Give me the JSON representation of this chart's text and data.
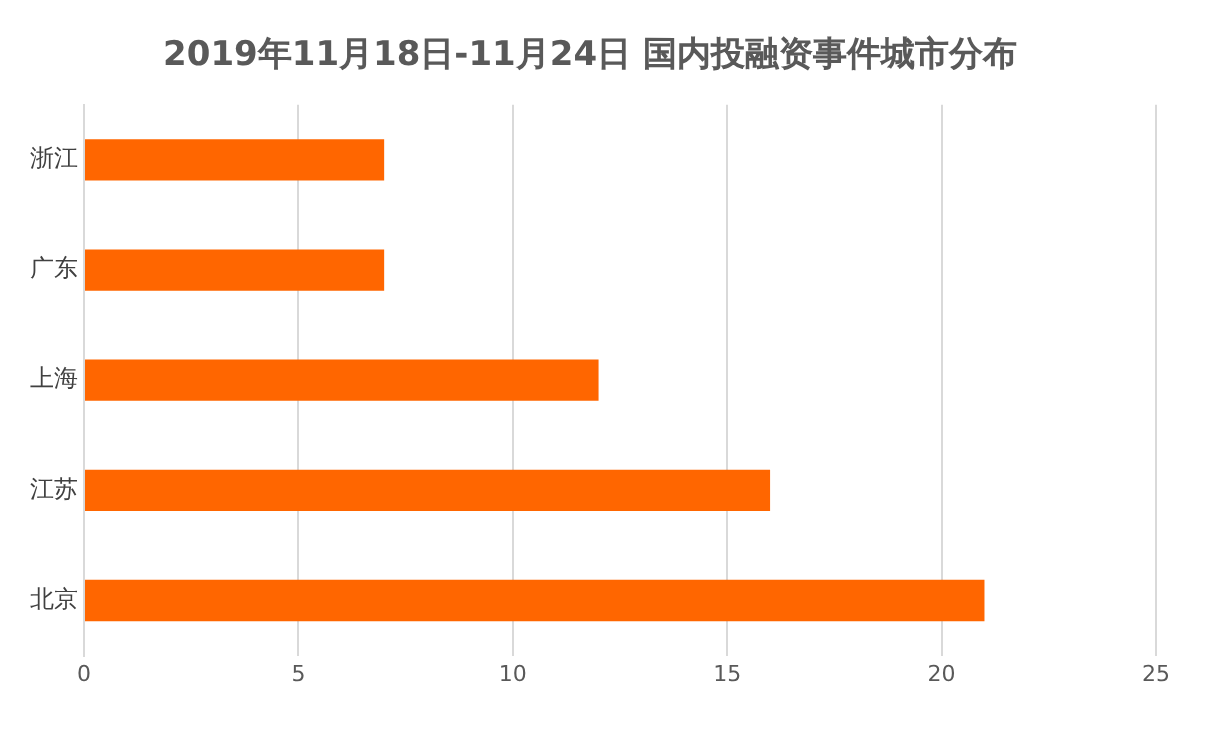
{
  "chart_data": {
    "type": "bar",
    "orientation": "horizontal",
    "title": "2019年11月18日-11月24日 国内投融资事件城市分布",
    "categories": [
      "浙江",
      "广东",
      "上海",
      "江苏",
      "北京"
    ],
    "values": [
      7,
      7,
      12,
      16,
      21
    ],
    "color": "#ff6600",
    "xlim": [
      0,
      25
    ],
    "xticks": [
      0,
      5,
      10,
      15,
      20,
      25
    ],
    "grid": "x",
    "legend": false
  }
}
